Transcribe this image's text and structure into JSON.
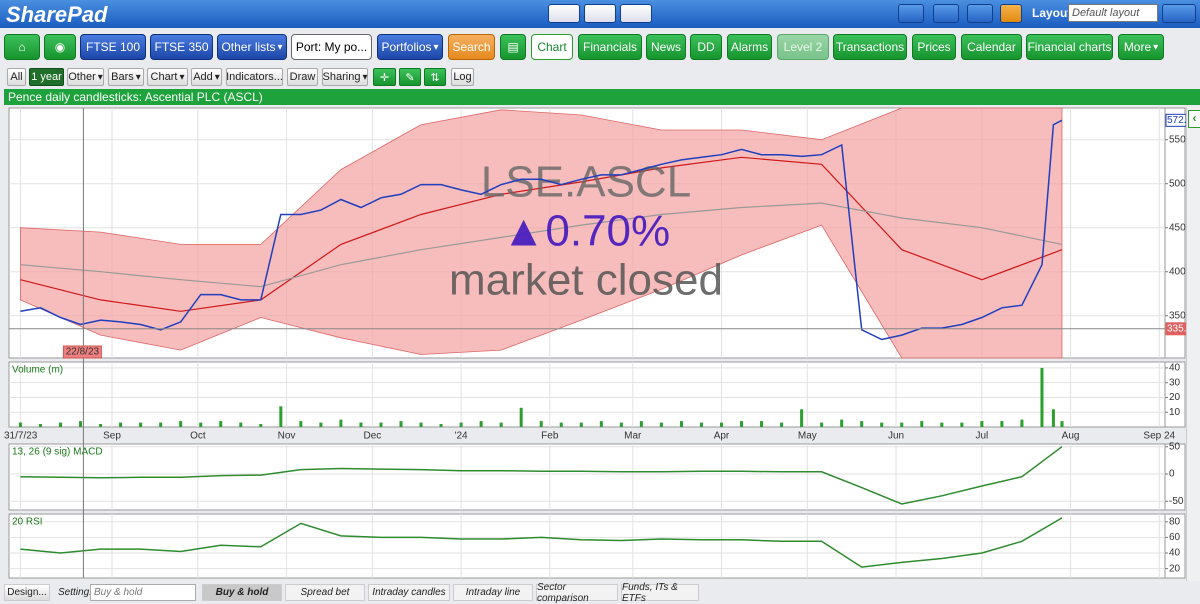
{
  "header": {
    "logo": "SharePad",
    "layout_label": "Layout:",
    "layout_value": "Default layout"
  },
  "nav": {
    "buttons": [
      "FTSE 100",
      "FTSE 350",
      "Other lists",
      "Port: My po...",
      "Portfolios",
      "Search",
      "Chart",
      "Financials",
      "News",
      "DD",
      "Alarms",
      "Level 2",
      "Transactions",
      "Prices",
      "Calendar",
      "Financial charts",
      "More"
    ]
  },
  "toolbar": {
    "buttons": [
      "All",
      "1 year",
      "Other",
      "Bars",
      "Chart",
      "Add",
      "Indicators...",
      "Draw",
      "Sharing",
      "Log"
    ]
  },
  "chart_data": [
    {
      "type": "line",
      "title": "Pence daily candlesticks: Ascential PLC (ASCL)",
      "x": [
        0,
        7,
        14,
        21,
        28,
        35,
        42,
        49,
        56,
        63,
        70,
        77,
        84,
        91,
        98,
        105,
        112,
        119,
        126,
        133,
        140,
        147,
        154,
        161,
        168,
        175,
        182,
        189,
        196,
        203,
        210,
        217,
        224,
        231,
        238,
        245,
        252,
        259,
        266,
        273,
        280,
        287,
        294,
        301,
        308,
        315,
        322,
        329,
        336,
        343,
        350,
        357,
        361,
        364
      ],
      "values": [
        355,
        359,
        348,
        340,
        345,
        343,
        340,
        334,
        343,
        374,
        374,
        368,
        368,
        465,
        465,
        470,
        482,
        473,
        484,
        488,
        499,
        499,
        493,
        488,
        499,
        505,
        505,
        499,
        505,
        510,
        510,
        516,
        522,
        527,
        530,
        533,
        539,
        533,
        533,
        531,
        533,
        544,
        334,
        323,
        328,
        336,
        336,
        340,
        348,
        359,
        362,
        408,
        567,
        572
      ],
      "color": "#1f3fbf",
      "xlim": [
        -4,
        400
      ],
      "ylim": [
        302,
        586
      ],
      "yticks": [
        350,
        400,
        450,
        500,
        550
      ],
      "bands": {
        "x": [
          0,
          28,
          56,
          84,
          112,
          140,
          168,
          196,
          224,
          252,
          280,
          308,
          336,
          364
        ],
        "upper": [
          450,
          445,
          431,
          431,
          516,
          567,
          584,
          578,
          561,
          561,
          550,
          586,
          586,
          586
        ],
        "lower": [
          368,
          328,
          311,
          348,
          325,
          306,
          311,
          345,
          380,
          419,
          453,
          302,
          302,
          302
        ],
        "color": "#f4a6a6"
      },
      "averages": [
        {
          "values": [
            391,
            368,
            355,
            368,
            431,
            465,
            488,
            502,
            518,
            530,
            522,
            425,
            391,
            425
          ],
          "color": "#d01818"
        },
        {
          "values": [
            408,
            400,
            391,
            383,
            408,
            425,
            439,
            453,
            465,
            473,
            478,
            461,
            450,
            431
          ],
          "color": "#999999"
        }
      ],
      "markers": [
        {
          "value": 572,
          "label": "572.0"
        },
        335.2
      ],
      "marker_colors": [
        "#1f3fbf",
        "#e06060"
      ],
      "crosshair": {
        "x": 22,
        "label": "22/8/23"
      },
      "annotations": [
        "LSE.ASCL",
        "▲0.70%",
        "market closed"
      ]
    },
    {
      "type": "bar",
      "title": "Volume (m)",
      "x": [
        0,
        7,
        14,
        21,
        28,
        35,
        42,
        49,
        56,
        63,
        70,
        77,
        84,
        91,
        98,
        105,
        112,
        119,
        126,
        133,
        140,
        147,
        154,
        161,
        168,
        175,
        182,
        189,
        196,
        203,
        210,
        217,
        224,
        231,
        238,
        245,
        252,
        259,
        266,
        273,
        280,
        287,
        294,
        301,
        308,
        315,
        322,
        329,
        336,
        343,
        350,
        357,
        361,
        364
      ],
      "values": [
        3,
        2,
        3,
        4,
        2,
        3,
        3,
        3,
        4,
        3,
        4,
        3,
        2,
        14,
        4,
        3,
        5,
        3,
        3,
        4,
        3,
        2,
        3,
        4,
        3,
        13,
        4,
        3,
        3,
        4,
        3,
        4,
        3,
        4,
        3,
        3,
        4,
        4,
        3,
        12,
        3,
        5,
        4,
        3,
        3,
        4,
        3,
        3,
        4,
        4,
        5,
        40,
        12,
        4
      ],
      "color": "#2ca02c",
      "xlim": [
        -4,
        400
      ],
      "ylim": [
        0,
        44
      ],
      "yticks": [
        10,
        20,
        30,
        40
      ],
      "xticks": [
        {
          "value": 0,
          "label": "31/7/23"
        },
        {
          "value": 32,
          "label": "Sep"
        },
        {
          "value": 62,
          "label": "Oct"
        },
        {
          "value": 93,
          "label": "Nov"
        },
        {
          "value": 123,
          "label": "Dec"
        },
        {
          "value": 154,
          "label": "'24"
        },
        {
          "value": 185,
          "label": "Feb"
        },
        {
          "value": 214,
          "label": "Mar"
        },
        {
          "value": 245,
          "label": "Apr"
        },
        {
          "value": 275,
          "label": "May"
        },
        {
          "value": 306,
          "label": "Jun"
        },
        {
          "value": 336,
          "label": "Jul"
        },
        {
          "value": 367,
          "label": "Aug"
        },
        {
          "value": 398,
          "label": "Sep 24"
        }
      ]
    },
    {
      "type": "line",
      "title": "13, 26 (9 sig) MACD",
      "x": [
        0,
        14,
        28,
        42,
        56,
        70,
        84,
        98,
        112,
        126,
        140,
        154,
        168,
        182,
        196,
        210,
        224,
        238,
        252,
        266,
        280,
        294,
        308,
        322,
        336,
        350,
        364
      ],
      "values": [
        -5,
        -6,
        -7,
        -6,
        -6,
        -3,
        -2,
        8,
        10,
        9,
        8,
        6,
        6,
        5,
        5,
        4,
        4,
        5,
        5,
        4,
        4,
        -25,
        -55,
        -40,
        -22,
        -5,
        50
      ],
      "color": "#2e8b2e",
      "xlim": [
        -4,
        400
      ],
      "ylim": [
        -66,
        55
      ],
      "yticks": [
        -50,
        0,
        50
      ]
    },
    {
      "type": "line",
      "title": "20 RSI",
      "x": [
        0,
        14,
        28,
        42,
        56,
        70,
        84,
        98,
        112,
        126,
        140,
        154,
        168,
        182,
        196,
        210,
        224,
        238,
        252,
        266,
        280,
        294,
        308,
        322,
        336,
        350,
        364
      ],
      "values": [
        45,
        40,
        45,
        45,
        42,
        50,
        48,
        78,
        62,
        60,
        60,
        58,
        58,
        60,
        57,
        56,
        58,
        57,
        57,
        55,
        55,
        22,
        28,
        33,
        40,
        55,
        85
      ],
      "color": "#2e8b2e",
      "xlim": [
        -4,
        400
      ],
      "ylim": [
        8,
        90
      ],
      "yticks": [
        20,
        40,
        60,
        80
      ]
    }
  ],
  "footer": {
    "design": "Design...",
    "setting_label": "Setting:",
    "setting_value": "Buy & hold",
    "tabs": [
      "Buy & hold",
      "Spread bet",
      "Intraday candles",
      "Intraday line",
      "Sector comparison",
      "Funds, ITs & ETFs"
    ]
  }
}
